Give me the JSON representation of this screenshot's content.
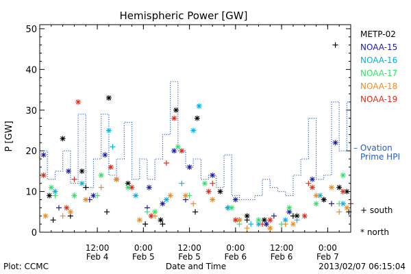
{
  "chart_data": {
    "type": "scatter",
    "title": "Hemispheric Power [GW]",
    "ylabel": "P [GW]",
    "xlabel": "Date and Time",
    "ylim": [
      0,
      51
    ],
    "y_ticks": [
      0,
      10,
      20,
      30,
      40,
      50
    ],
    "x_range": [
      "2013-02-03 21:00",
      "2013-02-07 06:00"
    ],
    "x_ticks": [
      {
        "t": "2013-02-04 12:00",
        "line1": "12:00",
        "line2": "Feb 4"
      },
      {
        "t": "2013-02-05 00:00",
        "line1": "0:00",
        "line2": "Feb 5"
      },
      {
        "t": "2013-02-05 12:00",
        "line1": "12:00",
        "line2": "Feb 5"
      },
      {
        "t": "2013-02-06 00:00",
        "line1": "0:00",
        "line2": "Feb 6"
      },
      {
        "t": "2013-02-06 12:00",
        "line1": "12:00",
        "line2": "Feb 6"
      },
      {
        "t": "2013-02-07 00:00",
        "line1": "0:00",
        "line2": "Feb 7"
      }
    ],
    "legend_position": "right",
    "series": [
      {
        "name": "METP-02",
        "color": "#000000",
        "south": [
          [
            "2013-02-04 00:30",
            3
          ],
          [
            "2013-02-04 05:00",
            4
          ],
          [
            "2013-02-04 09:00",
            11
          ],
          [
            "2013-02-04 14:30",
            5
          ],
          [
            "2013-02-05 00:30",
            2
          ],
          [
            "2013-02-05 05:00",
            2
          ],
          [
            "2013-02-05 13:30",
            5
          ],
          [
            "2013-02-05 22:00",
            6
          ],
          [
            "2013-02-06 03:00",
            3
          ],
          [
            "2013-02-06 08:00",
            2
          ],
          [
            "2013-02-06 15:00",
            4
          ],
          [
            "2013-02-06 23:00",
            8
          ],
          [
            "2013-02-07 02:00",
            46
          ],
          [
            "2013-02-07 05:30",
            5
          ]
        ],
        "north": [
          [
            "2013-02-03 23:30",
            9
          ],
          [
            "2013-02-04 03:00",
            23
          ],
          [
            "2013-02-04 08:00",
            15
          ],
          [
            "2013-02-04 15:00",
            33
          ],
          [
            "2013-02-04 20:00",
            12
          ],
          [
            "2013-02-05 04:30",
            3
          ],
          [
            "2013-02-05 08:30",
            30
          ],
          [
            "2013-02-05 14:00",
            28
          ],
          [
            "2013-02-05 20:00",
            10
          ],
          [
            "2013-02-06 03:00",
            4
          ],
          [
            "2013-02-06 07:30",
            3
          ],
          [
            "2013-02-06 16:00",
            4
          ],
          [
            "2013-02-06 23:00",
            8
          ],
          [
            "2013-02-07 03:00",
            11
          ],
          [
            "2013-02-07 05:00",
            10
          ]
        ]
      },
      {
        "name": "NOAA-15",
        "color": "#1a1ab3",
        "south": [
          [
            "2013-02-04 02:00",
            6
          ],
          [
            "2013-02-04 10:00",
            8
          ],
          [
            "2013-02-05 01:00",
            6
          ],
          [
            "2013-02-05 11:00",
            8
          ],
          [
            "2013-02-06 01:00",
            3
          ],
          [
            "2013-02-06 10:00",
            4
          ],
          [
            "2013-02-07 01:00",
            7
          ]
        ],
        "north": [
          [
            "2013-02-03 22:00",
            19
          ],
          [
            "2013-02-04 04:30",
            15
          ],
          [
            "2013-02-04 11:00",
            9
          ],
          [
            "2013-02-04 14:00",
            19
          ],
          [
            "2013-02-04 17:00",
            13
          ],
          [
            "2013-02-05 01:30",
            11
          ],
          [
            "2013-02-05 05:00",
            7
          ],
          [
            "2013-02-05 08:00",
            20
          ],
          [
            "2013-02-05 12:00",
            16
          ],
          [
            "2013-02-05 18:00",
            14
          ],
          [
            "2013-02-06 00:00",
            8
          ],
          [
            "2013-02-06 08:00",
            2
          ],
          [
            "2013-02-06 14:00",
            5
          ],
          [
            "2013-02-06 20:00",
            13
          ],
          [
            "2013-02-07 02:00",
            22
          ]
        ]
      },
      {
        "name": "NOAA-16",
        "color": "#00b4e6",
        "south": [
          [
            "2013-02-04 16:00",
            21
          ],
          [
            "2013-02-05 10:00",
            12
          ],
          [
            "2013-02-06 04:00",
            2
          ],
          [
            "2013-02-06 16:00",
            3
          ]
        ],
        "north": [
          [
            "2013-02-04 01:00",
            10
          ],
          [
            "2013-02-04 08:00",
            12
          ],
          [
            "2013-02-04 15:00",
            25
          ],
          [
            "2013-02-04 22:00",
            9
          ],
          [
            "2013-02-05 06:00",
            8
          ],
          [
            "2013-02-05 13:00",
            25
          ],
          [
            "2013-02-05 14:30",
            31
          ],
          [
            "2013-02-05 22:00",
            6
          ],
          [
            "2013-02-06 06:00",
            2
          ],
          [
            "2013-02-06 13:00",
            3
          ],
          [
            "2013-02-06 22:00",
            9
          ],
          [
            "2013-02-07 04:00",
            7
          ]
        ]
      },
      {
        "name": "NOAA-17",
        "color": "#28e664",
        "south": [
          [
            "2013-02-04 01:00",
            9
          ],
          [
            "2013-02-04 12:00",
            9
          ],
          [
            "2013-02-05 01:00",
            5
          ],
          [
            "2013-02-05 12:00",
            9
          ],
          [
            "2013-02-06 01:00",
            2
          ],
          [
            "2013-02-06 12:00",
            2
          ],
          [
            "2013-02-07 03:00",
            7
          ]
        ],
        "north": [
          [
            "2013-02-04 00:00",
            11
          ],
          [
            "2013-02-04 06:00",
            9
          ],
          [
            "2013-02-04 13:00",
            14
          ],
          [
            "2013-02-04 20:00",
            11
          ],
          [
            "2013-02-05 03:00",
            5
          ],
          [
            "2013-02-05 09:00",
            21
          ],
          [
            "2013-02-05 16:00",
            12
          ],
          [
            "2013-02-05 23:00",
            6
          ],
          [
            "2013-02-06 06:00",
            3
          ],
          [
            "2013-02-06 14:00",
            6
          ],
          [
            "2013-02-06 21:00",
            7
          ],
          [
            "2013-02-07 04:00",
            14
          ]
        ]
      },
      {
        "name": "NOAA-18",
        "color": "#f08c14",
        "south": [
          [
            "2013-02-04 03:00",
            4
          ],
          [
            "2013-02-04 13:00",
            11
          ],
          [
            "2013-02-05 03:00",
            4
          ],
          [
            "2013-02-05 13:00",
            7
          ],
          [
            "2013-02-06 03:00",
            1
          ],
          [
            "2013-02-06 13:00",
            2
          ],
          [
            "2013-02-07 03:00",
            5
          ]
        ],
        "north": [
          [
            "2013-02-03 22:30",
            4
          ],
          [
            "2013-02-04 05:00",
            5
          ],
          [
            "2013-02-04 09:00",
            8
          ],
          [
            "2013-02-04 17:00",
            13
          ],
          [
            "2013-02-04 23:00",
            3
          ],
          [
            "2013-02-05 07:00",
            9
          ],
          [
            "2013-02-05 11:00",
            9
          ],
          [
            "2013-02-05 18:00",
            8
          ],
          [
            "2013-02-06 01:00",
            3
          ],
          [
            "2013-02-06 09:00",
            1
          ],
          [
            "2013-02-06 15:00",
            2
          ],
          [
            "2013-02-06 21:00",
            9
          ],
          [
            "2013-02-07 01:00",
            11
          ],
          [
            "2013-02-07 05:00",
            6
          ]
        ]
      },
      {
        "name": "NOAA-19",
        "color": "#e62814",
        "south": [
          [
            "2013-02-04 06:00",
            13
          ],
          [
            "2013-02-05 06:00",
            17
          ],
          [
            "2013-02-05 18:00",
            12
          ],
          [
            "2013-02-06 07:00",
            2
          ],
          [
            "2013-02-06 19:00",
            12
          ],
          [
            "2013-02-07 06:00",
            7
          ]
        ],
        "north": [
          [
            "2013-02-03 22:00",
            14
          ],
          [
            "2013-02-04 04:00",
            6
          ],
          [
            "2013-02-04 07:00",
            32
          ],
          [
            "2013-02-04 15:30",
            16
          ],
          [
            "2013-02-04 21:00",
            11
          ],
          [
            "2013-02-05 02:00",
            4
          ],
          [
            "2013-02-05 08:00",
            28
          ],
          [
            "2013-02-05 10:00",
            20
          ],
          [
            "2013-02-05 17:00",
            10
          ],
          [
            "2013-02-06 00:00",
            3
          ],
          [
            "2013-02-06 09:00",
            3
          ],
          [
            "2013-02-06 18:00",
            4
          ],
          [
            "2013-02-06 20:00",
            11
          ],
          [
            "2013-02-07 04:00",
            10
          ]
        ]
      }
    ],
    "ovation": {
      "name": "Ovation Prime HPI",
      "legend_label": "– Ovation Prime HPI",
      "color": "#1f5fd0",
      "line_style": "dotted steps",
      "points": [
        [
          "2013-02-03 21:00",
          20
        ],
        [
          "2013-02-03 23:00",
          13
        ],
        [
          "2013-02-04 01:00",
          15
        ],
        [
          "2013-02-04 03:00",
          20
        ],
        [
          "2013-02-04 05:00",
          12
        ],
        [
          "2013-02-04 07:00",
          29
        ],
        [
          "2013-02-04 09:00",
          11
        ],
        [
          "2013-02-04 11:00",
          18
        ],
        [
          "2013-02-04 13:00",
          29
        ],
        [
          "2013-02-04 15:00",
          14
        ],
        [
          "2013-02-04 17:00",
          18
        ],
        [
          "2013-02-04 19:00",
          27
        ],
        [
          "2013-02-04 21:00",
          13
        ],
        [
          "2013-02-04 23:00",
          18
        ],
        [
          "2013-02-05 01:00",
          13
        ],
        [
          "2013-02-05 03:00",
          18
        ],
        [
          "2013-02-05 05:00",
          24
        ],
        [
          "2013-02-05 07:00",
          37
        ],
        [
          "2013-02-05 09:00",
          20
        ],
        [
          "2013-02-05 11:00",
          16
        ],
        [
          "2013-02-05 13:00",
          18
        ],
        [
          "2013-02-05 15:00",
          13
        ],
        [
          "2013-02-05 17:00",
          14
        ],
        [
          "2013-02-05 19:00",
          11
        ],
        [
          "2013-02-05 21:00",
          19
        ],
        [
          "2013-02-05 23:00",
          9
        ],
        [
          "2013-02-06 01:00",
          8
        ],
        [
          "2013-02-06 05:00",
          9
        ],
        [
          "2013-02-06 07:00",
          13
        ],
        [
          "2013-02-06 09:00",
          11
        ],
        [
          "2013-02-06 11:00",
          10
        ],
        [
          "2013-02-06 13:00",
          9
        ],
        [
          "2013-02-06 15:00",
          14
        ],
        [
          "2013-02-06 17:00",
          18
        ],
        [
          "2013-02-06 19:00",
          28
        ],
        [
          "2013-02-06 21:00",
          13
        ],
        [
          "2013-02-06 23:00",
          14
        ],
        [
          "2013-02-07 01:00",
          32
        ],
        [
          "2013-02-07 03:00",
          20
        ],
        [
          "2013-02-07 05:00",
          32
        ],
        [
          "2013-02-07 06:00",
          32
        ]
      ]
    },
    "marker_legend": {
      "south": "+ south",
      "north": "* north"
    }
  },
  "footer": {
    "left": "Plot: CCMC",
    "center": "Date and Time",
    "right": "2013/02/07 06:15:04"
  }
}
